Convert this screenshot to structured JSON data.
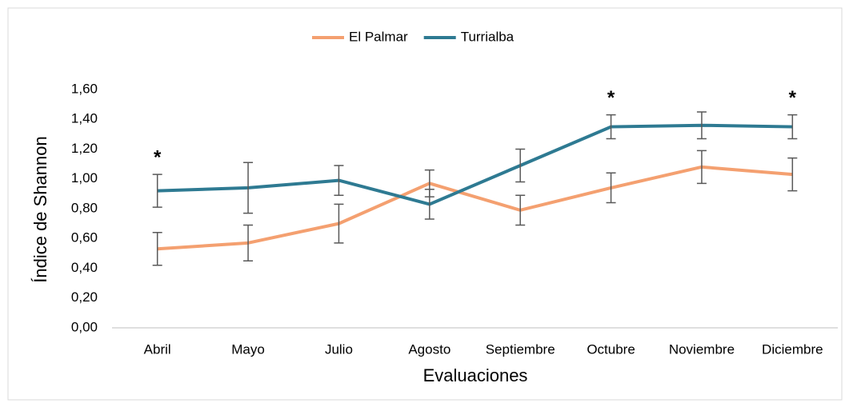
{
  "chart_data": {
    "type": "line",
    "xlabel": "Evaluaciones",
    "ylabel": "Índice de Shannon",
    "categories": [
      "Abril",
      "Mayo",
      "Julio",
      "Agosto",
      "Septiembre",
      "Octubre",
      "Noviembre",
      "Diciembre"
    ],
    "series": [
      {
        "name": "El Palmar",
        "color": "#f4a070",
        "values": [
          0.53,
          0.57,
          0.7,
          0.97,
          0.79,
          0.94,
          1.08,
          1.03
        ],
        "errors": [
          0.11,
          0.12,
          0.13,
          0.09,
          0.1,
          0.1,
          0.11,
          0.11
        ]
      },
      {
        "name": "Turrialba",
        "color": "#2e7a92",
        "values": [
          0.92,
          0.94,
          0.99,
          0.83,
          1.09,
          1.35,
          1.36,
          1.35
        ],
        "errors": [
          0.11,
          0.17,
          0.1,
          0.1,
          0.11,
          0.08,
          0.09,
          0.08
        ]
      }
    ],
    "ylim": [
      0,
      1.6
    ],
    "yticks": [
      {
        "value": 0,
        "label": "0,00"
      },
      {
        "value": 0.2,
        "label": "0,20"
      },
      {
        "value": 0.4,
        "label": "0,40"
      },
      {
        "value": 0.6,
        "label": "0,60"
      },
      {
        "value": 0.8,
        "label": "0,80"
      },
      {
        "value": 1.0,
        "label": "1,00"
      },
      {
        "value": 1.2,
        "label": "1,20"
      },
      {
        "value": 1.4,
        "label": "1,40"
      },
      {
        "value": 1.6,
        "label": "1,60"
      }
    ],
    "grid": false,
    "legend": "top",
    "annotations": [
      {
        "text": "*",
        "x": "Abril"
      },
      {
        "text": "*",
        "x": "Octubre"
      },
      {
        "text": "*",
        "x": "Diciembre"
      }
    ]
  }
}
